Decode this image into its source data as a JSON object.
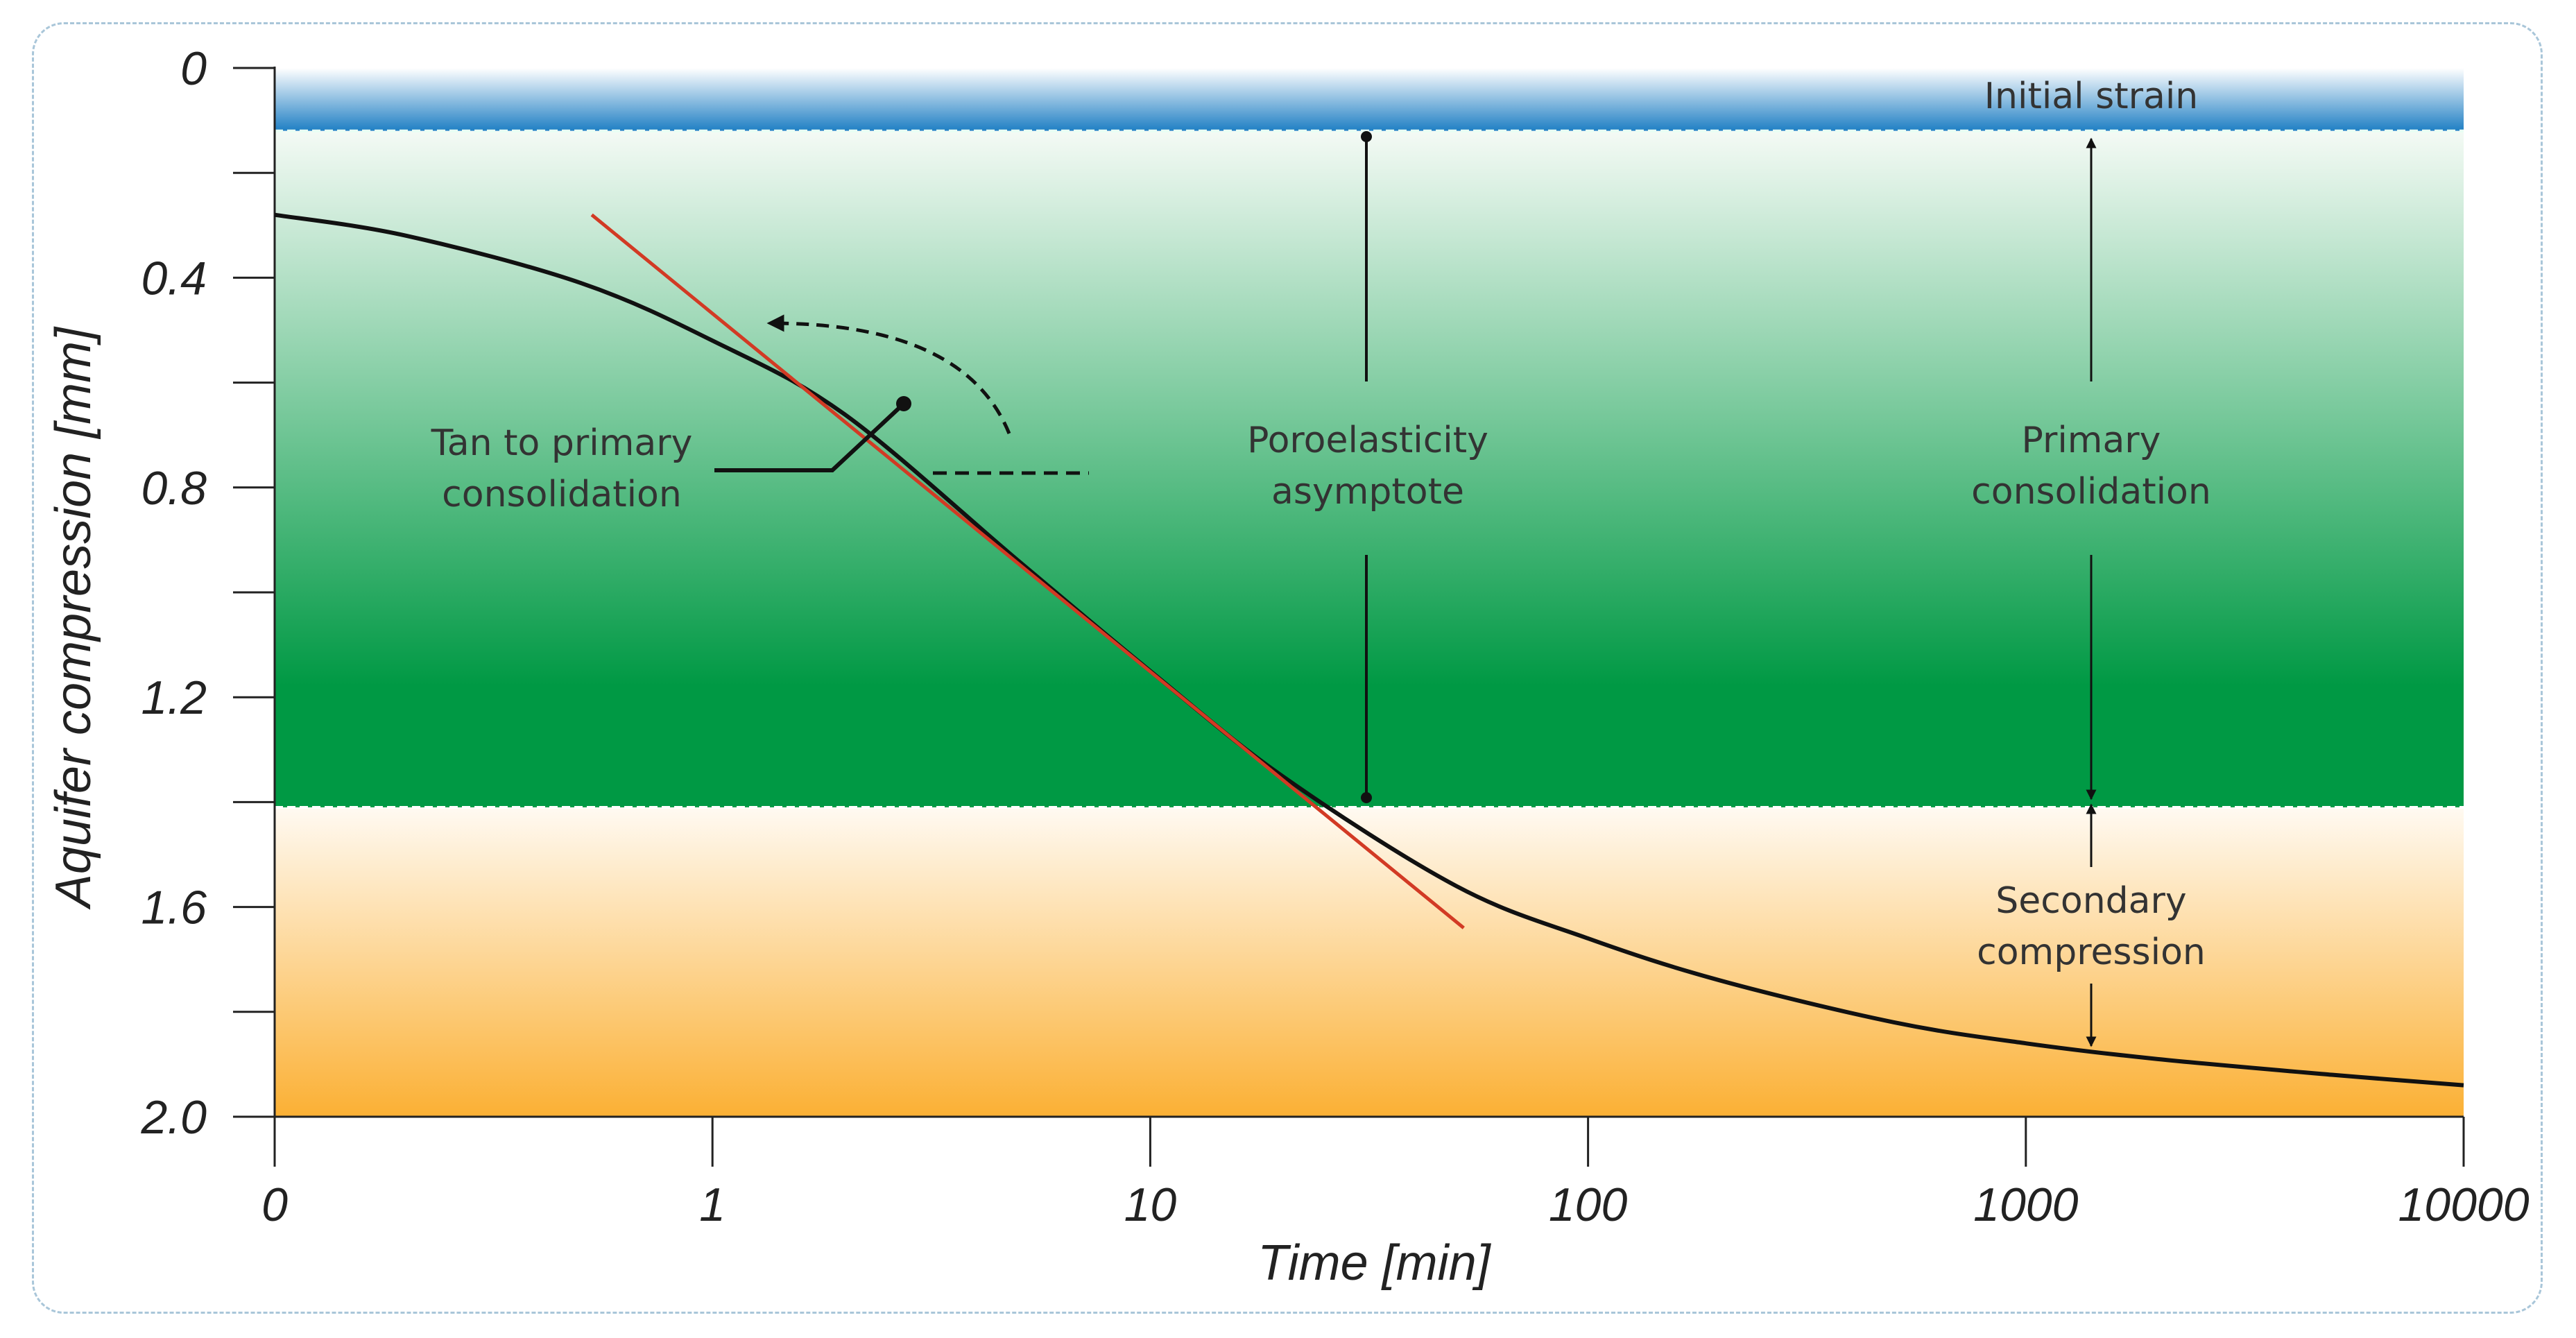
{
  "chart_data": {
    "type": "line",
    "title": "",
    "xlabel": "Time [min]",
    "ylabel": "Aquifer compression [mm]",
    "x_scale": "log",
    "x_ticks": [
      {
        "value": 0.1,
        "label": "0"
      },
      {
        "value": 1,
        "label": "1"
      },
      {
        "value": 10,
        "label": "10"
      },
      {
        "value": 100,
        "label": "100"
      },
      {
        "value": 1000,
        "label": "1000"
      },
      {
        "value": 10000,
        "label": "10000"
      }
    ],
    "xlim": [
      0.1,
      10000
    ],
    "ylim": [
      0,
      2.0
    ],
    "y_inverted": true,
    "y_ticks": [
      {
        "value": 0,
        "label": "0"
      },
      {
        "value": 0.4,
        "label": "0.4"
      },
      {
        "value": 0.8,
        "label": "0.8"
      },
      {
        "value": 1.2,
        "label": "1.2"
      },
      {
        "value": 1.6,
        "label": "1.6"
      },
      {
        "value": 2.0,
        "label": "2.0"
      }
    ],
    "y_minor_ticks": [
      0.2,
      0.6,
      1.0,
      1.4,
      1.8
    ],
    "bands": [
      {
        "name": "Initial strain",
        "from": 0,
        "to": 0.12,
        "color_top": "#ffffff",
        "color_bottom": "#1f7fc4"
      },
      {
        "name": "Primary consolidation",
        "from": 0.12,
        "to": 1.41,
        "color_top": "#f4faf5",
        "color_bottom": "#009944"
      },
      {
        "name": "Secondary compression",
        "from": 1.41,
        "to": 2.0,
        "color_top": "#fffaf2",
        "color_bottom": "#fbb034"
      }
    ],
    "series": [
      {
        "name": "Compression curve",
        "color": "#111111",
        "x": [
          0.1,
          0.2,
          0.5,
          1,
          2,
          5,
          10,
          20,
          50,
          100,
          200,
          500,
          1000,
          2000,
          5000,
          10000
        ],
        "y": [
          0.28,
          0.32,
          0.41,
          0.52,
          0.66,
          0.94,
          1.15,
          1.35,
          1.56,
          1.66,
          1.74,
          1.82,
          1.86,
          1.89,
          1.92,
          1.94
        ]
      },
      {
        "name": "Tangent line",
        "color": "#d23a24",
        "x": [
          0.53,
          52
        ],
        "y": [
          0.28,
          1.64
        ]
      }
    ],
    "annotations": {
      "initial_strain": "Initial strain",
      "tangent": [
        "Tan to primary",
        "consolidation"
      ],
      "poroelasticity": [
        "Poroelasticity",
        "asymptote"
      ],
      "primary": [
        "Primary",
        "consolidation"
      ],
      "secondary": [
        "Secondary",
        "compression"
      ]
    }
  }
}
